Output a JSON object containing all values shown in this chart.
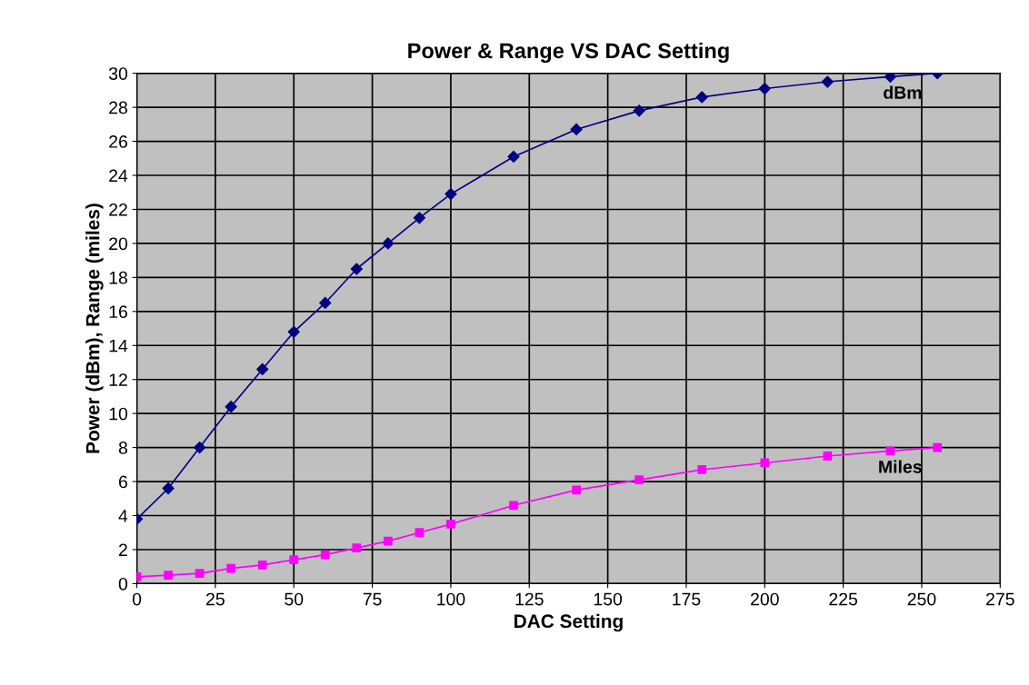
{
  "chart_data": {
    "type": "line",
    "title": "Power & Range VS DAC Setting",
    "xlabel": "DAC Setting",
    "ylabel": "Power (dBm), Range (miles)",
    "xlim": [
      0,
      275
    ],
    "xticks": [
      0,
      25,
      50,
      75,
      100,
      125,
      150,
      175,
      200,
      225,
      250,
      275
    ],
    "ylim": [
      0,
      30
    ],
    "yticks": [
      0,
      2,
      4,
      6,
      8,
      10,
      12,
      14,
      16,
      18,
      20,
      22,
      24,
      26,
      28,
      30
    ],
    "grid": true,
    "line_style": "solid",
    "series": [
      {
        "name": "dBm",
        "color": "#000080",
        "marker": "diamond",
        "x": [
          0,
          10,
          20,
          30,
          40,
          50,
          60,
          70,
          80,
          90,
          100,
          120,
          140,
          160,
          180,
          200,
          220,
          240,
          255
        ],
        "values": [
          3.8,
          5.6,
          8.0,
          10.4,
          12.6,
          14.8,
          16.5,
          18.5,
          20.0,
          21.5,
          22.9,
          25.1,
          26.7,
          27.8,
          28.6,
          29.1,
          29.5,
          29.8,
          30.0
        ]
      },
      {
        "name": "Miles",
        "color": "#ff00ff",
        "marker": "square",
        "x": [
          0,
          10,
          20,
          30,
          40,
          50,
          60,
          70,
          80,
          90,
          100,
          120,
          140,
          160,
          180,
          200,
          220,
          240,
          255
        ],
        "values": [
          0.4,
          0.5,
          0.6,
          0.9,
          1.1,
          1.4,
          1.7,
          2.1,
          2.5,
          3.0,
          3.5,
          4.6,
          5.5,
          6.1,
          6.7,
          7.1,
          7.5,
          7.8,
          8.0
        ]
      }
    ]
  }
}
